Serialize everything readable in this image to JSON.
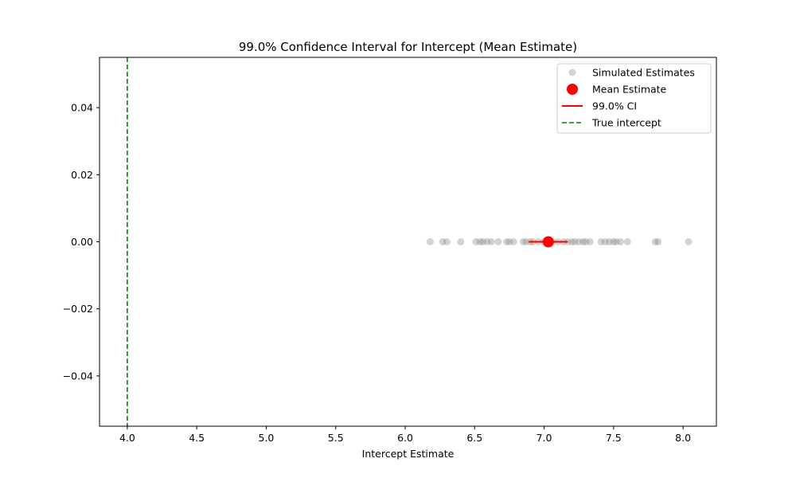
{
  "chart_data": {
    "type": "scatter",
    "title": "99.0% Confidence Interval for Intercept (Mean Estimate)",
    "xlabel": "Intercept Estimate",
    "ylabel": "",
    "xlim": [
      3.8,
      8.24
    ],
    "ylim": [
      -0.055,
      0.055
    ],
    "grid": false,
    "legend_position": "top-right",
    "x_ticks": [
      {
        "value": 4.0,
        "label": "4.0"
      },
      {
        "value": 4.5,
        "label": "4.5"
      },
      {
        "value": 5.0,
        "label": "5.0"
      },
      {
        "value": 5.5,
        "label": "5.5"
      },
      {
        "value": 6.0,
        "label": "6.0"
      },
      {
        "value": 6.5,
        "label": "6.5"
      },
      {
        "value": 7.0,
        "label": "7.0"
      },
      {
        "value": 7.5,
        "label": "7.5"
      },
      {
        "value": 8.0,
        "label": "8.0"
      }
    ],
    "y_ticks": [
      {
        "value": 0.04,
        "label": "0.04"
      },
      {
        "value": 0.02,
        "label": "0.02"
      },
      {
        "value": 0.0,
        "label": "0.00"
      },
      {
        "value": -0.02,
        "label": "−0.02"
      },
      {
        "value": -0.04,
        "label": "−0.04"
      }
    ],
    "series": [
      {
        "name": "Simulated Estimates",
        "kind": "scatter",
        "color": "#808080",
        "opacity": 0.35,
        "y": 0.0,
        "x": [
          6.18,
          6.27,
          6.3,
          6.4,
          6.51,
          6.54,
          6.56,
          6.59,
          6.62,
          6.67,
          6.73,
          6.75,
          6.78,
          6.85,
          6.87,
          6.9,
          6.92,
          6.96,
          7.0,
          7.03,
          7.06,
          7.1,
          7.14,
          7.17,
          7.2,
          7.22,
          7.25,
          7.28,
          7.3,
          7.33,
          7.41,
          7.44,
          7.47,
          7.5,
          7.52,
          7.55,
          7.6,
          7.8,
          7.82,
          8.04
        ]
      },
      {
        "name": "Mean Estimate",
        "kind": "scatter",
        "color": "#ff0000",
        "x": [
          7.03
        ],
        "y": [
          0.0
        ]
      },
      {
        "name": "99.0% CI",
        "kind": "hline",
        "color": "#ff0000",
        "x_range": [
          6.89,
          7.17
        ],
        "y": 0.0
      },
      {
        "name": "True intercept",
        "kind": "vline",
        "color": "#008000",
        "style": "dashed",
        "x": 4.0
      }
    ]
  }
}
